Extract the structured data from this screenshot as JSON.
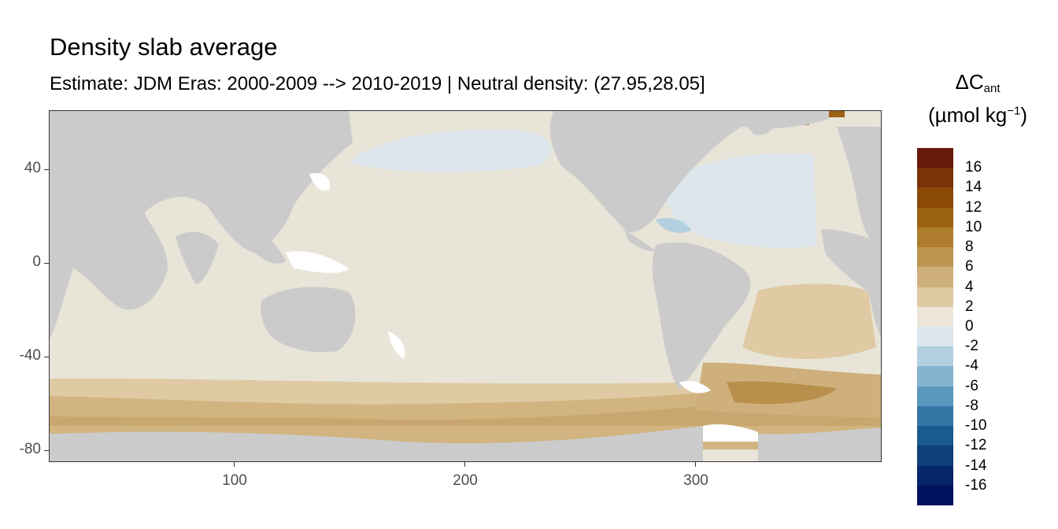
{
  "title": "Density slab average",
  "subtitle": "Estimate: JDM Eras: 2000-2009 --> 2010-2019 | Neutral density: (27.95,28.05]",
  "legend": {
    "title_main": "ΔC",
    "title_sub": "ant",
    "unit_prefix": "(µmol kg",
    "unit_sup": "−1",
    "unit_suffix": ")",
    "labels": [
      "16",
      "14",
      "12",
      "10",
      "8",
      "6",
      "4",
      "2",
      "0",
      "-2",
      "-4",
      "-6",
      "-8",
      "-10",
      "-12",
      "-14",
      "-16"
    ],
    "colors": [
      "#67190a",
      "#7a3208",
      "#8c4a08",
      "#9b6212",
      "#ad7c2c",
      "#bd9652",
      "#cfb07c",
      "#dfcaa4",
      "#ece6da",
      "#dce6ec",
      "#b4d0e0",
      "#86b4d0",
      "#5a96bd",
      "#3676a6",
      "#1b5a8e",
      "#0e3f77",
      "#06256a",
      "#011161"
    ]
  },
  "axes": {
    "y_ticks": [
      "40",
      "0",
      "-40",
      "-80"
    ],
    "x_ticks": [
      "100",
      "200",
      "300"
    ]
  },
  "chart_data": {
    "type": "heatmap",
    "title": "Density slab average",
    "subtitle": "Estimate: JDM Eras: 2000-2009 --> 2010-2019 | Neutral density: (27.95,28.05]",
    "xlabel": "",
    "ylabel": "",
    "xlim": [
      20,
      380
    ],
    "ylim": [
      -85,
      65
    ],
    "x_ticks": [
      100,
      200,
      300
    ],
    "y_ticks": [
      40,
      0,
      -40,
      -80
    ],
    "colorbar_ticks": [
      16,
      14,
      12,
      10,
      8,
      6,
      4,
      2,
      0,
      -2,
      -4,
      -6,
      -8,
      -10,
      -12,
      -14,
      -16
    ],
    "land_color": "#cbcbcb",
    "no_data_color": "#ffffff"
  }
}
